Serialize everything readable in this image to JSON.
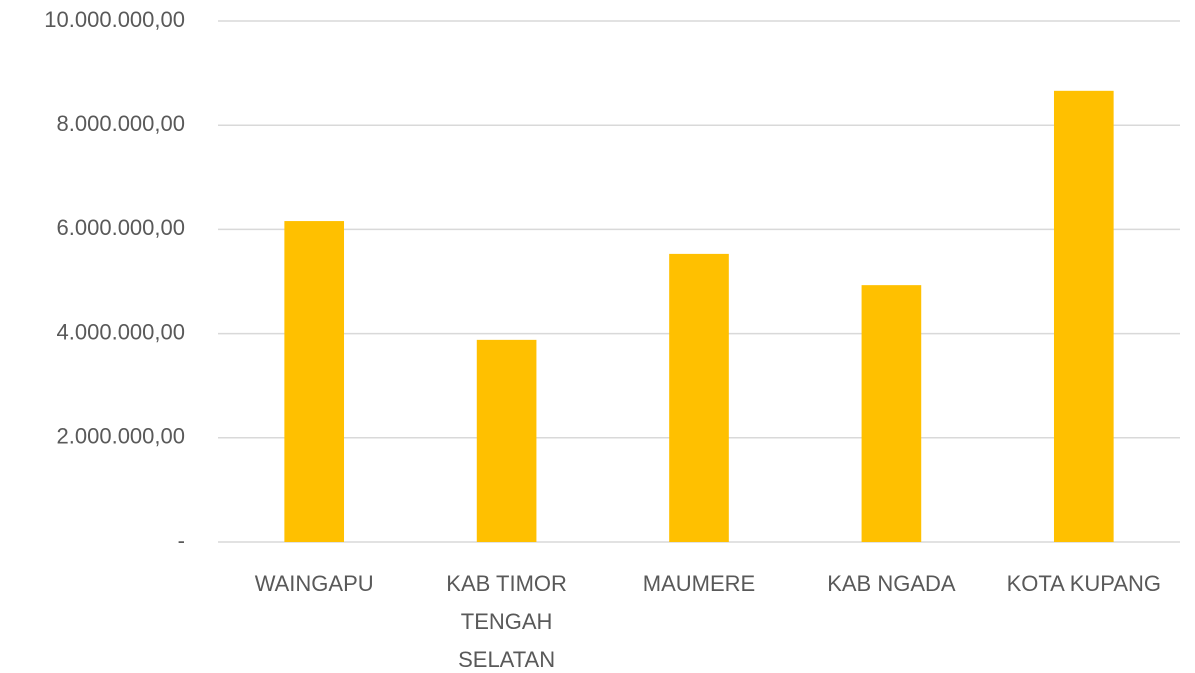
{
  "chart_data": {
    "type": "bar",
    "categories": [
      "WAINGAPU",
      "KAB TIMOR TENGAH SELATAN",
      "MAUMERE",
      "KAB NGADA",
      "KOTA KUPANG"
    ],
    "values": [
      6160000,
      3880000,
      5530000,
      4930000,
      8660000
    ],
    "color": "#ffc000",
    "ylim": [
      0,
      10000000
    ],
    "yticks": [
      {
        "value": 0,
        "label": "-"
      },
      {
        "value": 2000000,
        "label": "2.000.000,00"
      },
      {
        "value": 4000000,
        "label": "4.000.000,00"
      },
      {
        "value": 6000000,
        "label": "6.000.000,00"
      },
      {
        "value": 8000000,
        "label": "8.000.000,00"
      },
      {
        "value": 10000000,
        "label": "10.000.000,00"
      }
    ],
    "grid": true
  }
}
